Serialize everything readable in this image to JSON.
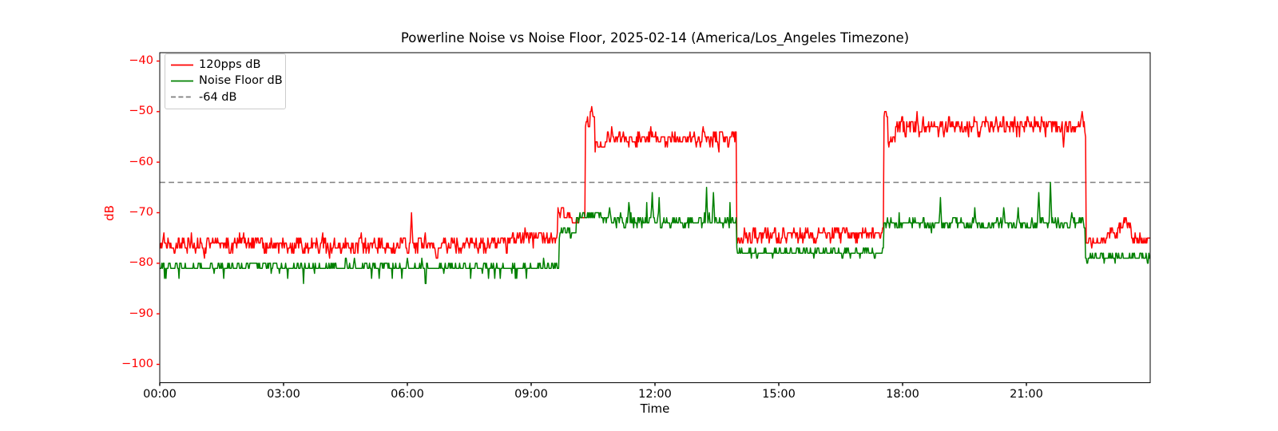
{
  "chart": {
    "type": "line",
    "title": "Powerline Noise vs Noise Floor, 2025-02-14 (America/Los_Angeles Timezone)",
    "xlabel": "Time",
    "ylabel": "dB",
    "xlim_hours": [
      0,
      24
    ],
    "ylim": [
      -103.6,
      -38.3
    ],
    "x_ticks": [
      {
        "h": 0,
        "label": "00:00"
      },
      {
        "h": 3,
        "label": "03:00"
      },
      {
        "h": 6,
        "label": "06:00"
      },
      {
        "h": 9,
        "label": "09:00"
      },
      {
        "h": 12,
        "label": "12:00"
      },
      {
        "h": 15,
        "label": "15:00"
      },
      {
        "h": 18,
        "label": "18:00"
      },
      {
        "h": 21,
        "label": "21:00"
      }
    ],
    "y_ticks": [
      {
        "v": -40,
        "label": "−40"
      },
      {
        "v": -50,
        "label": "−50"
      },
      {
        "v": -60,
        "label": "−60"
      },
      {
        "v": -70,
        "label": "−70"
      },
      {
        "v": -80,
        "label": "−80"
      },
      {
        "v": -90,
        "label": "−90"
      },
      {
        "v": -100,
        "label": "−100"
      }
    ],
    "axis_color_y": "#ff0000",
    "axis_color_x": "#000000",
    "threshold": {
      "value": -64,
      "label": "-64 dB",
      "color": "#7f7f7f",
      "style": "dashed"
    },
    "legend": [
      {
        "label": "120pps dB",
        "color": "#ff0000",
        "style": "solid"
      },
      {
        "label": "Noise Floor dB",
        "color": "#008000",
        "style": "solid"
      },
      {
        "label": "-64 dB",
        "color": "#7f7f7f",
        "style": "dashed"
      }
    ],
    "sampling_minutes": 1,
    "series": [
      {
        "name": "120pps dB",
        "color": "#ff0000",
        "segments": [
          {
            "t0": 0.0,
            "t1": 8.5,
            "level": -76.4,
            "amp": 1.05
          },
          {
            "t0": 8.5,
            "t1": 9.65,
            "level": -74.9,
            "amp": 1.0
          },
          {
            "t0": 9.65,
            "t1": 10.0,
            "level": -70.4,
            "amp": 0.8
          },
          {
            "t0": 10.0,
            "t1": 10.31,
            "level": -71.4,
            "amp": 0.7
          },
          {
            "t0": 10.31,
            "t1": 10.42,
            "level": -52.8,
            "amp": 0.7
          },
          {
            "t0": 10.42,
            "t1": 10.55,
            "level": -50.8,
            "amp": 0.7
          },
          {
            "t0": 10.55,
            "t1": 10.85,
            "level": -56.4,
            "amp": 0.7
          },
          {
            "t0": 10.85,
            "t1": 13.97,
            "level": -55.2,
            "amp": 1.1
          },
          {
            "t0": 13.97,
            "t1": 14.15,
            "level": -75.9,
            "amp": 0.7
          },
          {
            "t0": 14.15,
            "t1": 17.55,
            "level": -74.3,
            "amp": 1.0
          },
          {
            "t0": 17.55,
            "t1": 17.65,
            "level": -51.1,
            "amp": 0.6
          },
          {
            "t0": 17.65,
            "t1": 17.82,
            "level": -55.3,
            "amp": 0.7
          },
          {
            "t0": 17.82,
            "t1": 22.44,
            "level": -52.7,
            "amp": 1.1
          },
          {
            "t0": 22.44,
            "t1": 22.95,
            "level": -75.6,
            "amp": 0.7
          },
          {
            "t0": 22.95,
            "t1": 23.25,
            "level": -73.9,
            "amp": 0.8
          },
          {
            "t0": 23.25,
            "t1": 23.55,
            "level": -72.3,
            "amp": 0.8
          },
          {
            "t0": 23.55,
            "t1": 24.01,
            "level": -75.2,
            "amp": 0.7
          }
        ],
        "spikes": [
          {
            "t": 6.1,
            "v": -69.9
          },
          {
            "t": 9.75,
            "v": -68.6
          },
          {
            "t": 10.47,
            "v": -49.4
          },
          {
            "t": 17.59,
            "v": -50.3
          },
          {
            "t": 18.35,
            "v": -50.2
          },
          {
            "t": 21.9,
            "v": -57.3
          },
          {
            "t": 23.42,
            "v": -71.0
          }
        ]
      },
      {
        "name": "Noise Floor dB",
        "color": "#008000",
        "segments": [
          {
            "t0": 0.0,
            "t1": 9.68,
            "level": -80.7,
            "amp": 0.4,
            "spike_prob": 0.05,
            "spike_mag": -2.0
          },
          {
            "t0": 9.68,
            "t1": 10.1,
            "level": -74.0,
            "amp": 0.7
          },
          {
            "t0": 10.1,
            "t1": 10.75,
            "level": -70.6,
            "amp": 0.6
          },
          {
            "t0": 10.75,
            "t1": 13.97,
            "level": -71.8,
            "amp": 0.7,
            "spike_prob": 0.015,
            "spike_mag": 3.2
          },
          {
            "t0": 13.97,
            "t1": 17.55,
            "level": -77.8,
            "amp": 0.5,
            "spike_prob": 0.02,
            "spike_mag": -1.3
          },
          {
            "t0": 17.55,
            "t1": 22.42,
            "level": -72.2,
            "amp": 0.7,
            "spike_prob": 0.015,
            "spike_mag": 3.0
          },
          {
            "t0": 22.42,
            "t1": 24.01,
            "level": -78.7,
            "amp": 0.45,
            "spike_prob": 0.02,
            "spike_mag": -1.2
          }
        ],
        "spikes": [
          {
            "t": 0.95,
            "v": -79.6
          },
          {
            "t": 1.25,
            "v": -79.7
          },
          {
            "t": 4.52,
            "v": -78.7
          },
          {
            "t": 4.72,
            "v": -78.9
          },
          {
            "t": 6.0,
            "v": -79.3
          },
          {
            "t": 6.35,
            "v": -79.5
          },
          {
            "t": 9.3,
            "v": -78.9
          },
          {
            "t": 10.9,
            "v": -68.9
          },
          {
            "t": 11.36,
            "v": -67.9
          },
          {
            "t": 11.93,
            "v": -65.9
          },
          {
            "t": 12.1,
            "v": -67.5
          },
          {
            "t": 13.25,
            "v": -65.4
          },
          {
            "t": 13.42,
            "v": -66.3
          },
          {
            "t": 18.92,
            "v": -67.2
          },
          {
            "t": 19.75,
            "v": -69.2
          },
          {
            "t": 20.45,
            "v": -69.4
          },
          {
            "t": 21.3,
            "v": -65.6
          },
          {
            "t": 21.58,
            "v": -63.9
          },
          {
            "t": 22.1,
            "v": -69.6
          },
          {
            "t": 22.47,
            "v": -80.4
          },
          {
            "t": 23.94,
            "v": -80.5
          }
        ]
      }
    ]
  }
}
